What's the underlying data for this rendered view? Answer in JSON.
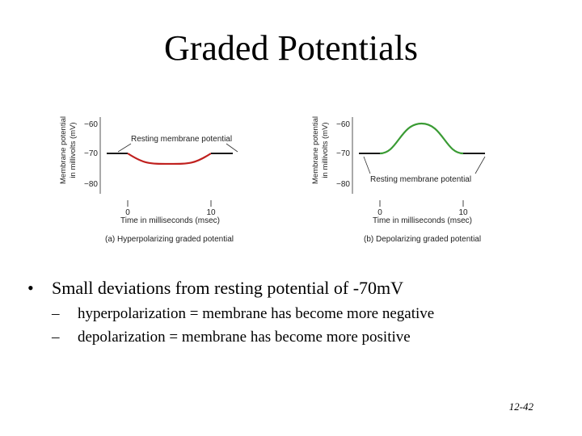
{
  "slide": {
    "title": "Graded Potentials",
    "page_number": "12-42"
  },
  "figure": {
    "y_axis_label_line1": "Membrane potential",
    "y_axis_label_line2": "in millivolts (mV)",
    "y_ticks": [
      "−60",
      "−70",
      "−80"
    ],
    "x_axis_label": "Time in milliseconds (msec)",
    "x_ticks": [
      "0",
      "10"
    ],
    "panel_a": {
      "annotation": "Resting membrane potential",
      "caption": "(a) Hyperpolarizing graded potential",
      "resting_mV": -70,
      "min_mV": -73.5,
      "curve_color": "#c0201e"
    },
    "panel_b": {
      "annotation": "Resting membrane potential",
      "caption": "(b) Depolarizing graded potential",
      "resting_mV": -70,
      "peak_mV": -60,
      "curve_color": "#3a9b34"
    }
  },
  "bullets": {
    "main": "Small deviations from resting potential of -70mV",
    "sub": [
      "hyperpolarization = membrane has become more negative",
      "depolarization = membrane has become more positive"
    ]
  }
}
